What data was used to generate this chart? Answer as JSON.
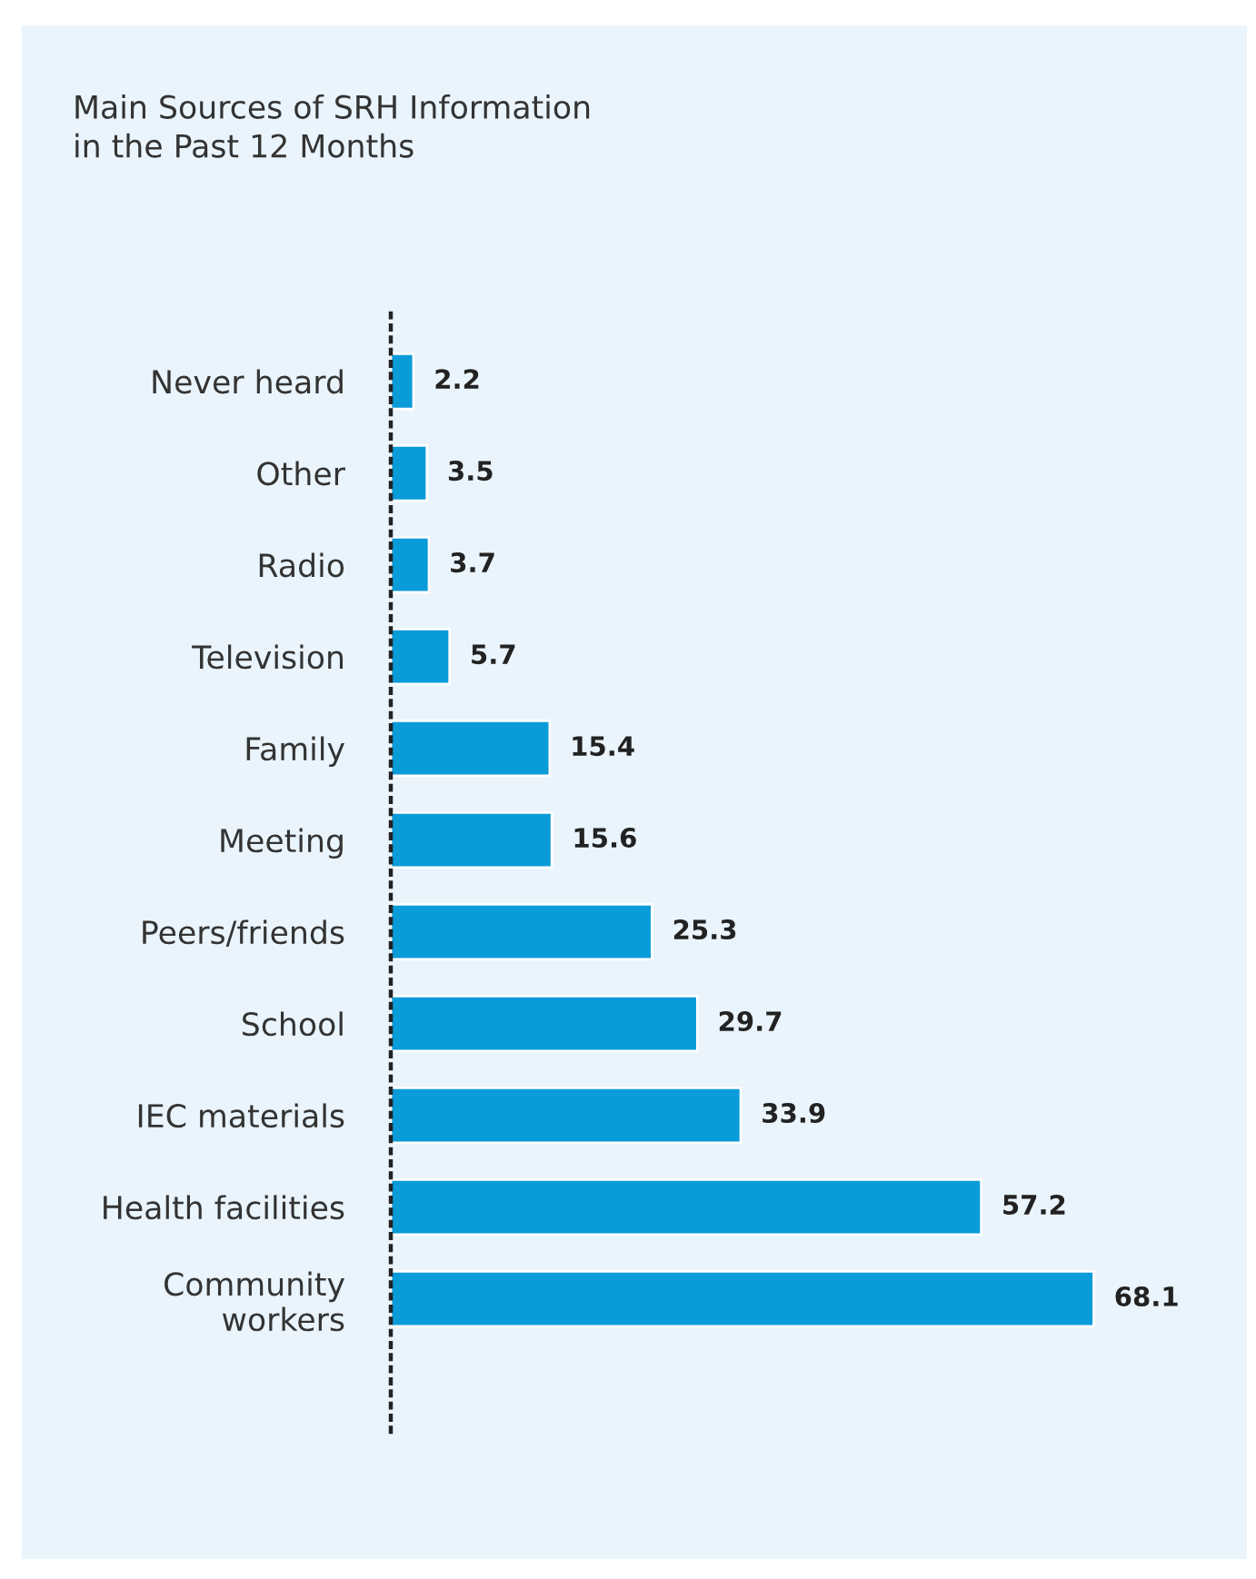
{
  "chart_data": {
    "type": "bar",
    "orientation": "horizontal",
    "title": "Main Sources of SRH Information\nin the Past 12 Months",
    "categories": [
      "Never heard",
      "Other",
      "Radio",
      "Television",
      "Family",
      "Meeting",
      "Peers/friends",
      "School",
      "IEC materials",
      "Health facilities",
      "Community\nworkers"
    ],
    "values": [
      2.2,
      3.5,
      3.7,
      5.7,
      15.4,
      15.6,
      25.3,
      29.7,
      33.9,
      57.2,
      68.1
    ],
    "color": "#0a9bd9",
    "data_labels": true,
    "grid": false,
    "legend": false
  }
}
